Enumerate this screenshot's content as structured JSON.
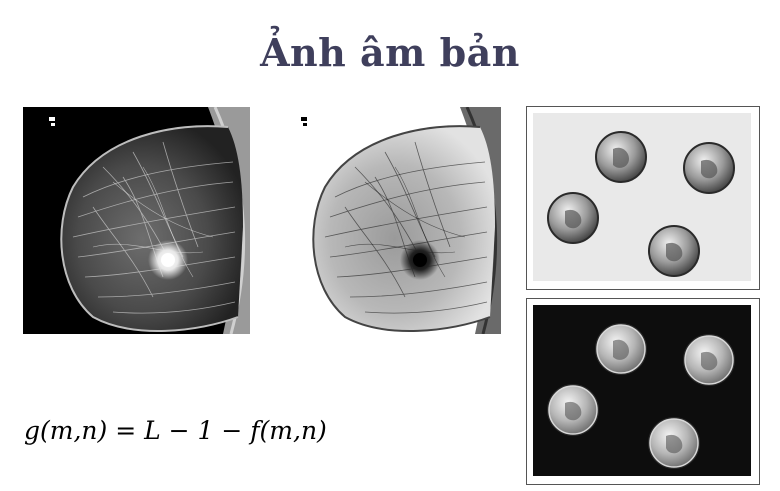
{
  "slide": {
    "title": "Ảnh âm bản",
    "formula": "g(m,n) = L − 1 − f(m,n)"
  },
  "images": {
    "mammogram_original": "mammogram (original)",
    "mammogram_negative": "mammogram (negative)",
    "coins_light": "coins on light background",
    "coins_dark": "coins on dark background"
  }
}
